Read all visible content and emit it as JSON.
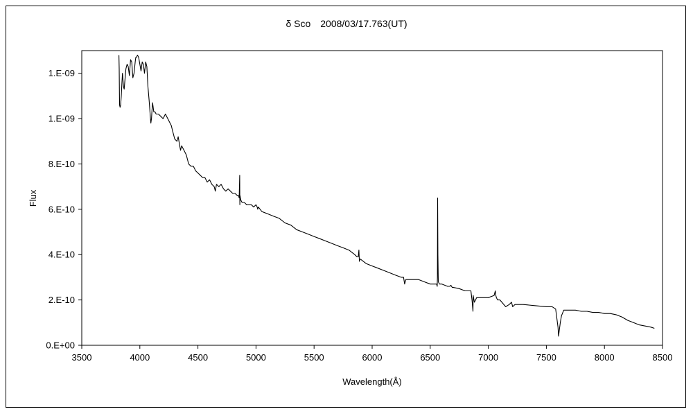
{
  "chart_data": {
    "type": "line",
    "title": "δ Sco　2008/03/17.763(UT)",
    "xlabel": "Wavelength(Å)",
    "ylabel": "Flux",
    "xlim": [
      3500,
      8500
    ],
    "ylim": [
      0,
      1.3e-09
    ],
    "x_ticks": [
      3500,
      4000,
      4500,
      5000,
      5500,
      6000,
      6500,
      7000,
      7500,
      8000,
      8500
    ],
    "x_tick_labels": [
      "3500",
      "4000",
      "4500",
      "5000",
      "5500",
      "6000",
      "6500",
      "7000",
      "7500",
      "8000",
      "8500"
    ],
    "y_ticks": [
      0,
      2e-10,
      4e-10,
      6e-10,
      8e-10,
      1e-09,
      1.2e-09
    ],
    "y_tick_labels": [
      "0.E+00",
      "2.E-10",
      "4.E-10",
      "6.E-10",
      "8.E-10",
      "1.E-09",
      "1.E-09"
    ],
    "grid": false,
    "line_color": "#000000",
    "series": [
      {
        "x": [
          3820,
          3822,
          3825,
          3830,
          3835,
          3840,
          3845,
          3850,
          3855,
          3860,
          3865,
          3870,
          3880,
          3890,
          3900,
          3910,
          3920,
          3930,
          3940,
          3950,
          3960,
          3965,
          3970,
          3980,
          3990,
          4000,
          4010,
          4020,
          4030,
          4040,
          4050,
          4060,
          4070,
          4080,
          4090,
          4095,
          4100,
          4105,
          4110,
          4120,
          4130,
          4140,
          4160,
          4180,
          4200,
          4220,
          4250,
          4260,
          4270,
          4280,
          4290,
          4300,
          4320,
          4330,
          4340,
          4350,
          4360,
          4380,
          4400,
          4410,
          4420,
          4440,
          4460,
          4471,
          4480,
          4500,
          4520,
          4540,
          4560,
          4580,
          4600,
          4620,
          4640,
          4650,
          4660,
          4680,
          4700,
          4720,
          4740,
          4760,
          4780,
          4800,
          4820,
          4840,
          4850,
          4855,
          4860,
          4861,
          4862,
          4863,
          4866,
          4870,
          4880,
          4900,
          4920,
          4940,
          4960,
          4980,
          5000,
          5010,
          5015,
          5020,
          5050,
          5100,
          5150,
          5200,
          5250,
          5300,
          5350,
          5400,
          5450,
          5500,
          5550,
          5600,
          5650,
          5700,
          5750,
          5800,
          5850,
          5870,
          5880,
          5886,
          5890,
          5895,
          5900,
          5950,
          6000,
          6050,
          6100,
          6150,
          6200,
          6250,
          6270,
          6280,
          6290,
          6300,
          6350,
          6400,
          6450,
          6500,
          6540,
          6555,
          6560,
          6562,
          6563,
          6564,
          6566,
          6570,
          6580,
          6600,
          6650,
          6670,
          6678,
          6690,
          6700,
          6750,
          6800,
          6850,
          6860,
          6868,
          6870,
          6880,
          6890,
          6900,
          6920,
          6950,
          7000,
          7050,
          7060,
          7065,
          7070,
          7080,
          7100,
          7150,
          7180,
          7200,
          7210,
          7230,
          7250,
          7300,
          7400,
          7500,
          7550,
          7580,
          7590,
          7600,
          7605,
          7610,
          7620,
          7630,
          7650,
          7680,
          7700,
          7750,
          7800,
          7850,
          7900,
          7950,
          8000,
          8050,
          8100,
          8150,
          8200,
          8250,
          8300,
          8350,
          8400,
          8430
        ],
        "y": [
          1.28e-09,
          1.22e-09,
          1.06e-09,
          1.05e-09,
          1.06e-09,
          1.1e-09,
          1.15e-09,
          1.2e-09,
          1.17e-09,
          1.14e-09,
          1.13e-09,
          1.16e-09,
          1.22e-09,
          1.24e-09,
          1.23e-09,
          1.19e-09,
          1.26e-09,
          1.25e-09,
          1.18e-09,
          1.2e-09,
          1.25e-09,
          1.27e-09,
          1.27e-09,
          1.28e-09,
          1.27e-09,
          1.24e-09,
          1.21e-09,
          1.25e-09,
          1.24e-09,
          1.2e-09,
          1.25e-09,
          1.23e-09,
          1.14e-09,
          1.08e-09,
          1.01e-09,
          9.8e-10,
          1e-09,
          1.04e-09,
          1.07e-09,
          1.03e-09,
          1.03e-09,
          1.02e-09,
          1.02e-09,
          1.01e-09,
          1e-09,
          1.02e-09,
          9.9e-10,
          9.8e-10,
          9.7e-10,
          9.5e-10,
          9.3e-10,
          9.1e-10,
          9e-10,
          9.2e-10,
          8.9e-10,
          8.6e-10,
          8.8e-10,
          8.6e-10,
          8.4e-10,
          8.2e-10,
          8e-10,
          7.9e-10,
          7.9e-10,
          7.8e-10,
          7.7e-10,
          7.6e-10,
          7.5e-10,
          7.4e-10,
          7.4e-10,
          7.2e-10,
          7.3e-10,
          7.1e-10,
          7e-10,
          6.8e-10,
          7.1e-10,
          7e-10,
          7.1e-10,
          6.9e-10,
          6.8e-10,
          6.9e-10,
          6.8e-10,
          6.7e-10,
          6.7e-10,
          6.6e-10,
          6.6e-10,
          6.5e-10,
          7.5e-10,
          6.2e-10,
          6.5e-10,
          6.6e-10,
          6.5e-10,
          6.4e-10,
          6.3e-10,
          6.3e-10,
          6.2e-10,
          6.2e-10,
          6.2e-10,
          6.1e-10,
          6.2e-10,
          6.1e-10,
          6e-10,
          6.1e-10,
          5.9e-10,
          5.8e-10,
          5.7e-10,
          5.6e-10,
          5.4e-10,
          5.3e-10,
          5.1e-10,
          5e-10,
          4.9e-10,
          4.8e-10,
          4.7e-10,
          4.6e-10,
          4.5e-10,
          4.4e-10,
          4.3e-10,
          4.2e-10,
          4e-10,
          3.9e-10,
          3.9e-10,
          4.2e-10,
          3.7e-10,
          3.8e-10,
          3.8e-10,
          3.6e-10,
          3.5e-10,
          3.4e-10,
          3.3e-10,
          3.2e-10,
          3.1e-10,
          3e-10,
          3e-10,
          2.7e-10,
          2.9e-10,
          2.9e-10,
          2.9e-10,
          2.9e-10,
          2.8e-10,
          2.7e-10,
          2.7e-10,
          2.7e-10,
          2.6e-10,
          3e-10,
          5.6e-10,
          6.5e-10,
          4e-10,
          2.8e-10,
          2.7e-10,
          2.7e-10,
          2.6e-10,
          2.6e-10,
          2.65e-10,
          2.55e-10,
          2.55e-10,
          2.5e-10,
          2.4e-10,
          2.4e-10,
          2e-10,
          1.5e-10,
          2.2e-10,
          1.9e-10,
          2e-10,
          2.1e-10,
          2.1e-10,
          2.1e-10,
          2.1e-10,
          2.2e-10,
          2.4e-10,
          2.2e-10,
          2.1e-10,
          2e-10,
          2e-10,
          1.7e-10,
          1.8e-10,
          1.9e-10,
          1.7e-10,
          1.8e-10,
          1.8e-10,
          1.8e-10,
          1.75e-10,
          1.7e-10,
          1.7e-10,
          1.6e-10,
          1.2e-10,
          8e-11,
          4e-11,
          6e-11,
          1e-10,
          1.3e-10,
          1.55e-10,
          1.55e-10,
          1.55e-10,
          1.55e-10,
          1.5e-10,
          1.5e-10,
          1.45e-10,
          1.45e-10,
          1.4e-10,
          1.4e-10,
          1.35e-10,
          1.25e-10,
          1.1e-10,
          1e-10,
          9e-11,
          8.5e-11,
          8e-11,
          7.5e-11
        ]
      }
    ]
  }
}
